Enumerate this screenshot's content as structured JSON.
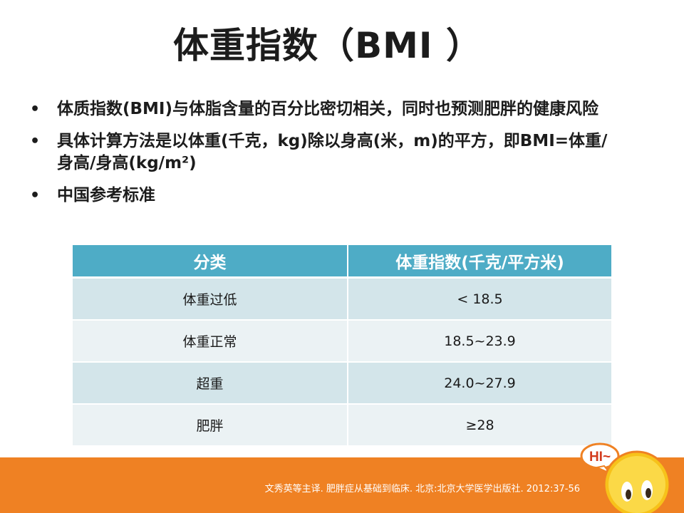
{
  "title": "体重指数（BMI ）",
  "bullets": [
    "体质指数(BMI)与体脂含量的百分比密切相关，同时也预测肥胖的健康风险",
    "具体计算方法是以体重(千克，kg)除以身高(米，m)的平方，即BMI=体重/身高/身高(kg/m²)",
    "中国参考标准"
  ],
  "bullet_symbol": "•",
  "table": {
    "headers": [
      "分类",
      "体重指数(千克/平方米)"
    ],
    "rows": [
      [
        "体重过低",
        "< 18.5"
      ],
      [
        "体重正常",
        "18.5~23.9"
      ],
      [
        "超重",
        "24.0~27.9"
      ],
      [
        "肥胖",
        "≥28"
      ]
    ]
  },
  "footer": {
    "reference": "文秀英等主译. 肥胖症从基础到临床. 北京:北京大学医学出版社. 2012:37-56"
  },
  "mascot": {
    "speech_text": "HI~",
    "icon": "smiley-mascot-icon"
  },
  "colors": {
    "header_bg": "#4eacc6",
    "row_odd": "#d3e5ea",
    "row_even": "#ebf2f4",
    "footer_bg": "#ef8123"
  }
}
